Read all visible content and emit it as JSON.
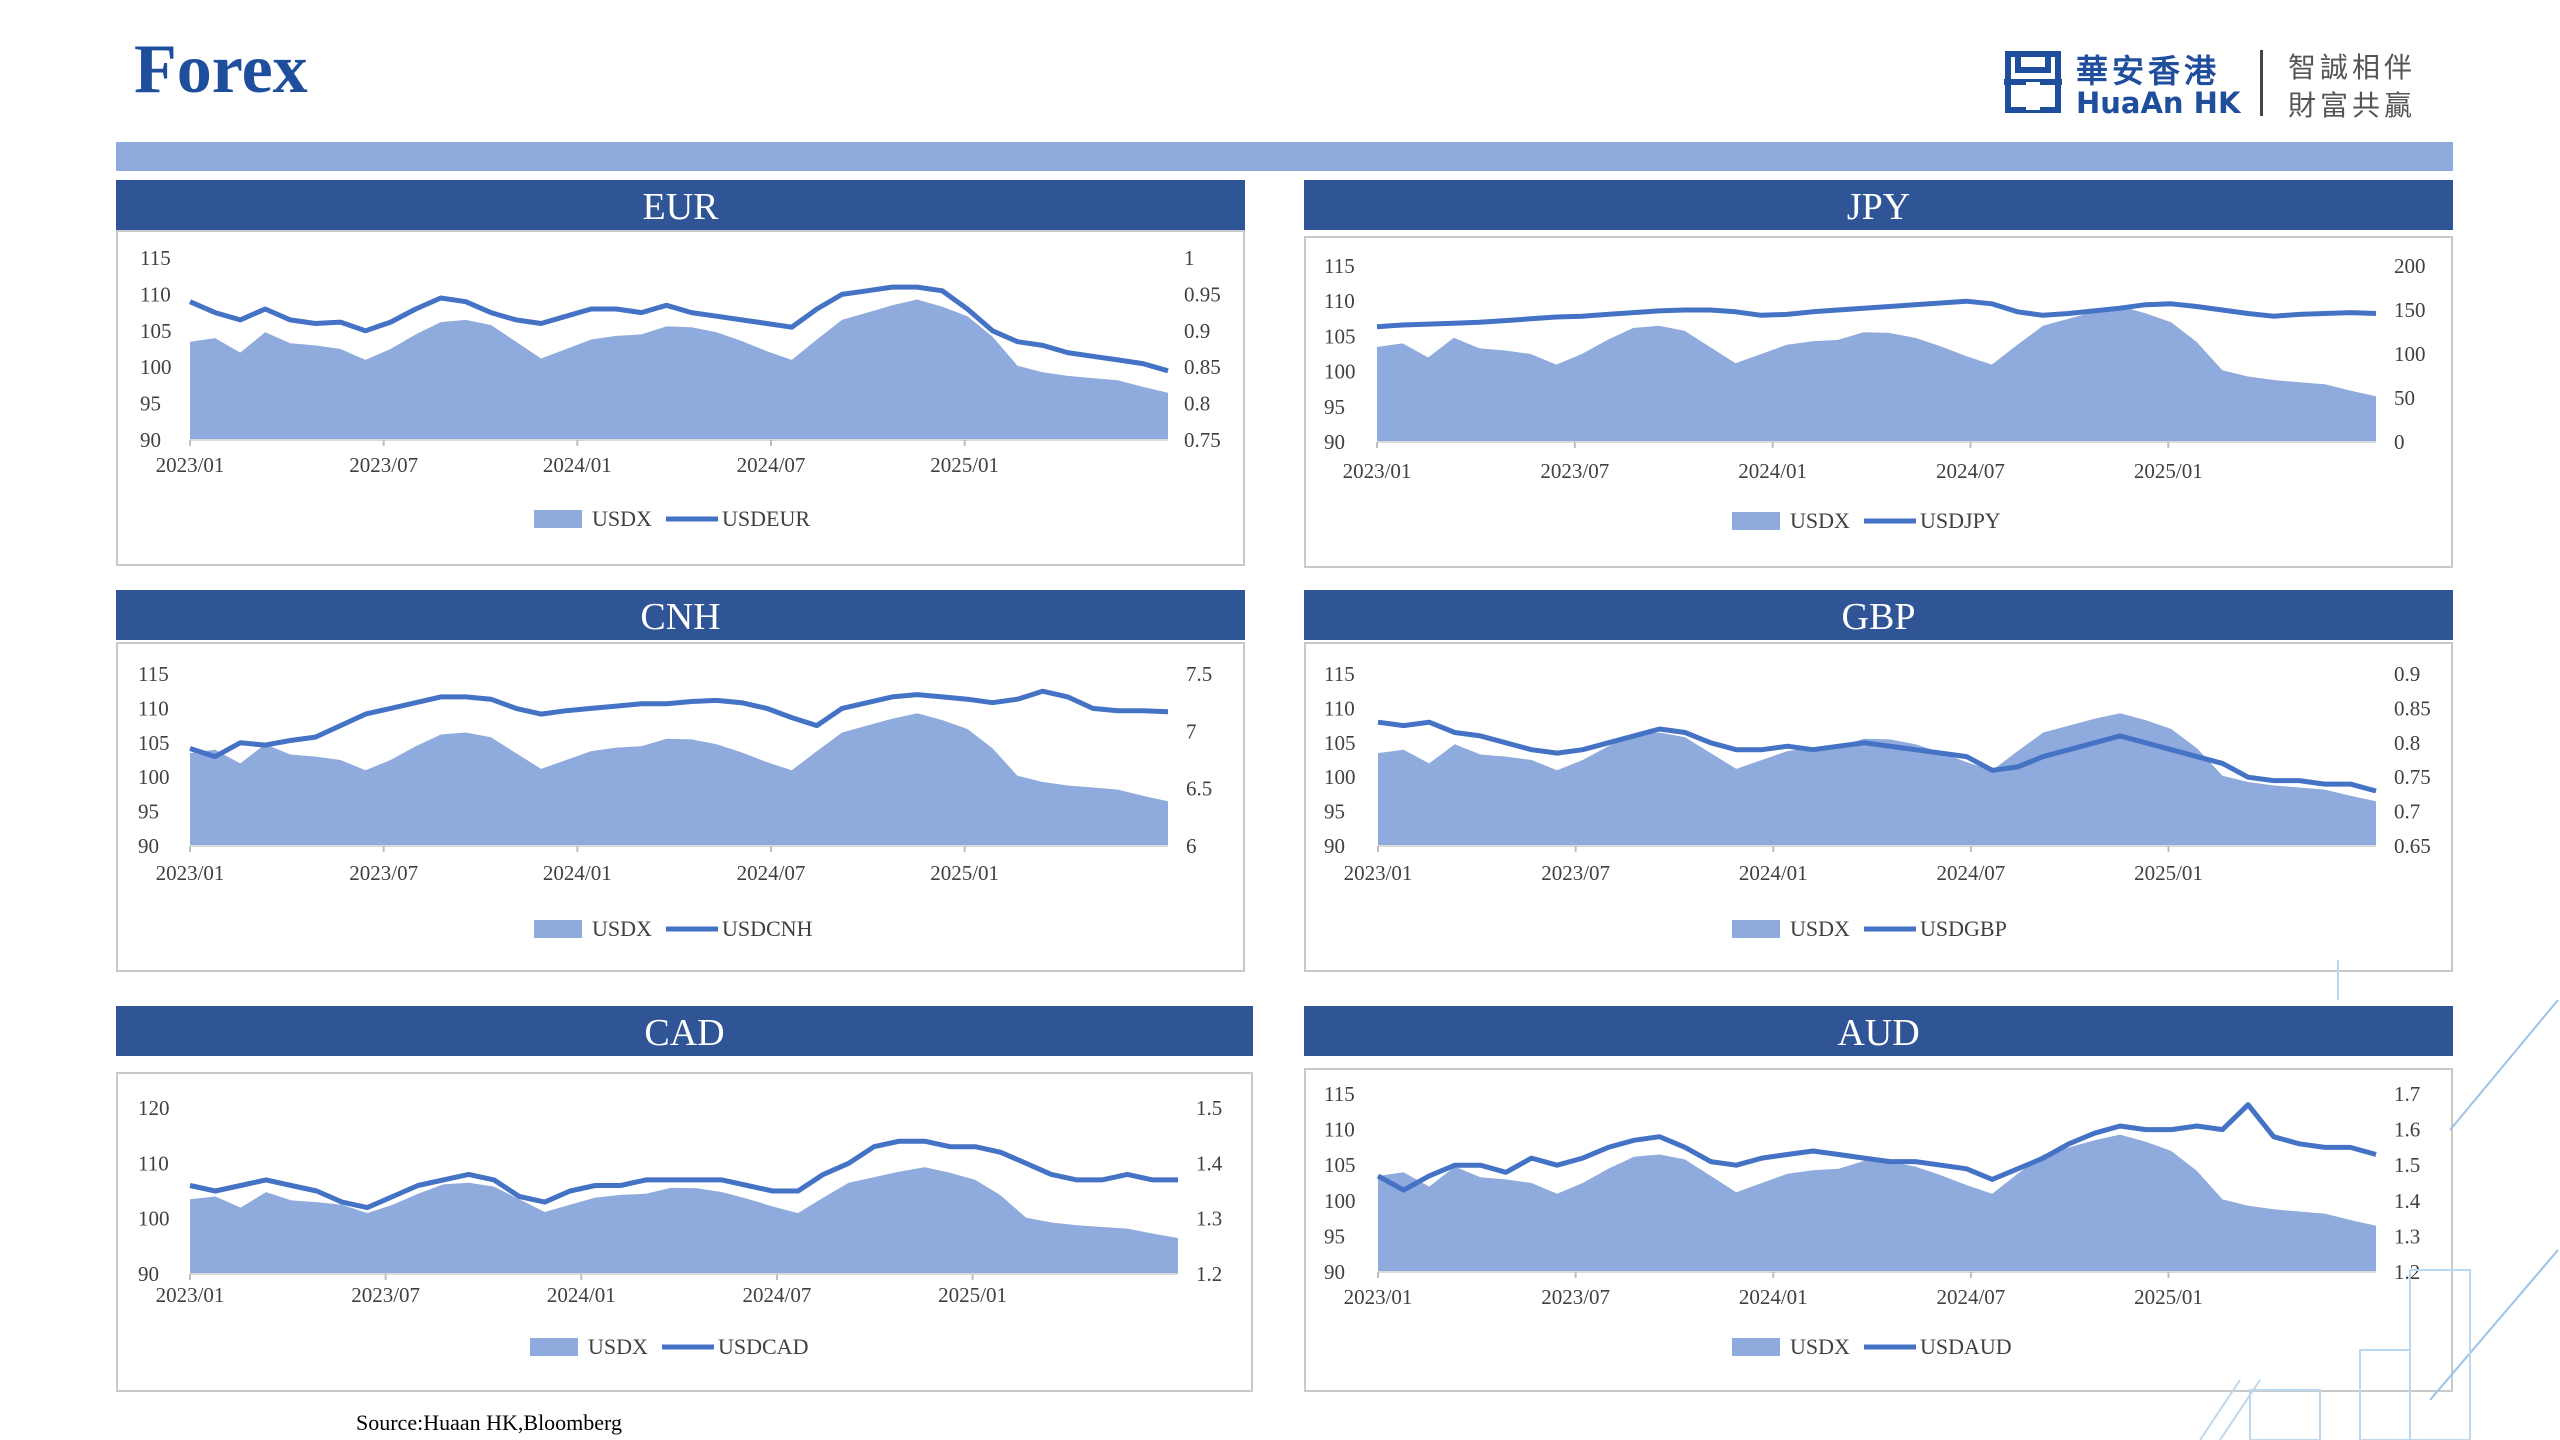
{
  "page": {
    "title": "Forex",
    "source": "Source:Huaan HK,Bloomberg"
  },
  "logo": {
    "cn_name": "華安香港",
    "en_name": "HuaAn HK",
    "slogan_line1": "智誠相伴",
    "slogan_line2": "財富共贏"
  },
  "colors": {
    "brand": "#1f4e9c",
    "header_bg": "#2f5597",
    "band": "#8faadc",
    "area": "#8faadc",
    "line": "#4472c4"
  },
  "chart_data": [
    {
      "id": "eur",
      "title": "EUR",
      "type": "area+line",
      "x_ticks": [
        "2023/01",
        "2023/07",
        "2024/01",
        "2024/07",
        "2025/01"
      ],
      "left_axis": {
        "ticks": [
          "115",
          "110",
          "105",
          "100",
          "95",
          "90"
        ],
        "range": [
          90,
          115
        ]
      },
      "right_axis": {
        "ticks": [
          "1",
          "0.95",
          "0.9",
          "0.85",
          "0.8",
          "0.75"
        ],
        "range": [
          0.75,
          1
        ]
      },
      "series": [
        {
          "name": "USDX",
          "kind": "area",
          "axis": "left",
          "values": [
            103.5,
            104.0,
            102.0,
            104.8,
            103.3,
            103.0,
            102.5,
            101.0,
            102.5,
            104.5,
            106.2,
            106.5,
            105.8,
            103.5,
            101.2,
            102.5,
            103.8,
            104.3,
            104.5,
            105.6,
            105.5,
            104.8,
            103.6,
            102.2,
            101.0,
            103.8,
            106.5,
            107.5,
            108.5,
            109.3,
            108.3,
            107.0,
            104.2,
            100.2,
            99.3,
            98.8,
            98.5,
            98.2,
            97.3,
            96.5
          ]
        },
        {
          "name": "USDEUR",
          "kind": "line",
          "axis": "right",
          "values": [
            0.94,
            0.925,
            0.915,
            0.93,
            0.915,
            0.91,
            0.912,
            0.9,
            0.912,
            0.93,
            0.945,
            0.94,
            0.925,
            0.915,
            0.91,
            0.92,
            0.93,
            0.93,
            0.925,
            0.935,
            0.925,
            0.92,
            0.915,
            0.91,
            0.905,
            0.93,
            0.95,
            0.955,
            0.96,
            0.96,
            0.955,
            0.93,
            0.9,
            0.885,
            0.88,
            0.87,
            0.865,
            0.86,
            0.855,
            0.845
          ]
        }
      ],
      "legend": [
        "USDX",
        "USDEUR"
      ],
      "legend_position": "bottom"
    },
    {
      "id": "jpy",
      "title": "JPY",
      "type": "area+line",
      "x_ticks": [
        "2023/01",
        "2023/07",
        "2024/01",
        "2024/07",
        "2025/01"
      ],
      "left_axis": {
        "ticks": [
          "115",
          "110",
          "105",
          "100",
          "95",
          "90"
        ],
        "range": [
          90,
          115
        ]
      },
      "right_axis": {
        "ticks": [
          "200",
          "150",
          "100",
          "50",
          "0"
        ],
        "range": [
          0,
          200
        ]
      },
      "series": [
        {
          "name": "USDX",
          "kind": "area",
          "axis": "left",
          "values": [
            103.5,
            104.0,
            102.0,
            104.8,
            103.3,
            103.0,
            102.5,
            101.0,
            102.5,
            104.5,
            106.2,
            106.5,
            105.8,
            103.5,
            101.2,
            102.5,
            103.8,
            104.3,
            104.5,
            105.6,
            105.5,
            104.8,
            103.6,
            102.2,
            101.0,
            103.8,
            106.5,
            107.5,
            108.5,
            109.3,
            108.3,
            107.0,
            104.2,
            100.2,
            99.3,
            98.8,
            98.5,
            98.2,
            97.3,
            96.5
          ]
        },
        {
          "name": "USDJPY",
          "kind": "line",
          "axis": "right",
          "values": [
            131,
            133,
            134,
            135,
            136,
            138,
            140,
            142,
            143,
            145,
            147,
            149,
            150,
            150,
            148,
            144,
            145,
            148,
            150,
            152,
            154,
            156,
            158,
            160,
            157,
            148,
            144,
            146,
            149,
            152,
            156,
            157,
            154,
            150,
            146,
            143,
            145,
            146,
            147,
            146
          ]
        }
      ],
      "legend": [
        "USDX",
        "USDJPY"
      ],
      "legend_position": "bottom"
    },
    {
      "id": "cnh",
      "title": "CNH",
      "type": "area+line",
      "x_ticks": [
        "2023/01",
        "2023/07",
        "2024/01",
        "2024/07",
        "2025/01"
      ],
      "left_axis": {
        "ticks": [
          "115",
          "110",
          "105",
          "100",
          "95",
          "90"
        ],
        "range": [
          90,
          115
        ]
      },
      "right_axis": {
        "ticks": [
          "7.5",
          "7",
          "6.5",
          "6"
        ],
        "range": [
          6,
          7.5
        ]
      },
      "series": [
        {
          "name": "USDX",
          "kind": "area",
          "axis": "left",
          "values": [
            103.5,
            104.0,
            102.0,
            104.8,
            103.3,
            103.0,
            102.5,
            101.0,
            102.5,
            104.5,
            106.2,
            106.5,
            105.8,
            103.5,
            101.2,
            102.5,
            103.8,
            104.3,
            104.5,
            105.6,
            105.5,
            104.8,
            103.6,
            102.2,
            101.0,
            103.8,
            106.5,
            107.5,
            108.5,
            109.3,
            108.3,
            107.0,
            104.2,
            100.2,
            99.3,
            98.8,
            98.5,
            98.2,
            97.3,
            96.5
          ]
        },
        {
          "name": "USDCNH",
          "kind": "line",
          "axis": "right",
          "values": [
            6.85,
            6.78,
            6.9,
            6.88,
            6.92,
            6.95,
            7.05,
            7.15,
            7.2,
            7.25,
            7.3,
            7.3,
            7.28,
            7.2,
            7.15,
            7.18,
            7.2,
            7.22,
            7.24,
            7.24,
            7.26,
            7.27,
            7.25,
            7.2,
            7.12,
            7.05,
            7.2,
            7.25,
            7.3,
            7.32,
            7.3,
            7.28,
            7.25,
            7.28,
            7.35,
            7.3,
            7.2,
            7.18,
            7.18,
            7.17
          ]
        }
      ],
      "legend": [
        "USDX",
        "USDCNH"
      ],
      "legend_position": "bottom"
    },
    {
      "id": "gbp",
      "title": "GBP",
      "type": "area+line",
      "x_ticks": [
        "2023/01",
        "2023/07",
        "2024/01",
        "2024/07",
        "2025/01"
      ],
      "left_axis": {
        "ticks": [
          "115",
          "110",
          "105",
          "100",
          "95",
          "90"
        ],
        "range": [
          90,
          115
        ]
      },
      "right_axis": {
        "ticks": [
          "0.9",
          "0.85",
          "0.8",
          "0.75",
          "0.7",
          "0.65"
        ],
        "range": [
          0.65,
          0.9
        ]
      },
      "series": [
        {
          "name": "USDX",
          "kind": "area",
          "axis": "left",
          "values": [
            103.5,
            104.0,
            102.0,
            104.8,
            103.3,
            103.0,
            102.5,
            101.0,
            102.5,
            104.5,
            106.2,
            106.5,
            105.8,
            103.5,
            101.2,
            102.5,
            103.8,
            104.3,
            104.5,
            105.6,
            105.5,
            104.8,
            103.6,
            102.2,
            101.0,
            103.8,
            106.5,
            107.5,
            108.5,
            109.3,
            108.3,
            107.0,
            104.2,
            100.2,
            99.3,
            98.8,
            98.5,
            98.2,
            97.3,
            96.5
          ]
        },
        {
          "name": "USDGBP",
          "kind": "line",
          "axis": "right",
          "values": [
            0.83,
            0.825,
            0.83,
            0.815,
            0.81,
            0.8,
            0.79,
            0.785,
            0.79,
            0.8,
            0.81,
            0.82,
            0.815,
            0.8,
            0.79,
            0.79,
            0.795,
            0.79,
            0.795,
            0.8,
            0.795,
            0.79,
            0.785,
            0.78,
            0.76,
            0.765,
            0.78,
            0.79,
            0.8,
            0.81,
            0.8,
            0.79,
            0.78,
            0.77,
            0.75,
            0.745,
            0.745,
            0.74,
            0.74,
            0.73
          ]
        }
      ],
      "legend": [
        "USDX",
        "USDGBP"
      ],
      "legend_position": "bottom"
    },
    {
      "id": "cad",
      "title": "CAD",
      "type": "area+line",
      "x_ticks": [
        "2023/01",
        "2023/07",
        "2024/01",
        "2024/07",
        "2025/01"
      ],
      "left_axis": {
        "ticks": [
          "120",
          "110",
          "100",
          "90"
        ],
        "range": [
          90,
          120
        ]
      },
      "right_axis": {
        "ticks": [
          "1.5",
          "1.4",
          "1.3",
          "1.2"
        ],
        "range": [
          1.2,
          1.5
        ]
      },
      "series": [
        {
          "name": "USDX",
          "kind": "area",
          "axis": "left",
          "values": [
            103.5,
            104.0,
            102.0,
            104.8,
            103.3,
            103.0,
            102.5,
            101.0,
            102.5,
            104.5,
            106.2,
            106.5,
            105.8,
            103.5,
            101.2,
            102.5,
            103.8,
            104.3,
            104.5,
            105.6,
            105.5,
            104.8,
            103.6,
            102.2,
            101.0,
            103.8,
            106.5,
            107.5,
            108.5,
            109.3,
            108.3,
            107.0,
            104.2,
            100.2,
            99.3,
            98.8,
            98.5,
            98.2,
            97.3,
            96.5
          ]
        },
        {
          "name": "USDCAD",
          "kind": "line",
          "axis": "right",
          "values": [
            1.36,
            1.35,
            1.36,
            1.37,
            1.36,
            1.35,
            1.33,
            1.32,
            1.34,
            1.36,
            1.37,
            1.38,
            1.37,
            1.34,
            1.33,
            1.35,
            1.36,
            1.36,
            1.37,
            1.37,
            1.37,
            1.37,
            1.36,
            1.35,
            1.35,
            1.38,
            1.4,
            1.43,
            1.44,
            1.44,
            1.43,
            1.43,
            1.42,
            1.4,
            1.38,
            1.37,
            1.37,
            1.38,
            1.37,
            1.37
          ]
        }
      ],
      "legend": [
        "USDX",
        "USDCAD"
      ],
      "legend_position": "bottom"
    },
    {
      "id": "aud",
      "title": "AUD",
      "type": "area+line",
      "x_ticks": [
        "2023/01",
        "2023/07",
        "2024/01",
        "2024/07",
        "2025/01"
      ],
      "left_axis": {
        "ticks": [
          "115",
          "110",
          "105",
          "100",
          "95",
          "90"
        ],
        "range": [
          90,
          115
        ]
      },
      "right_axis": {
        "ticks": [
          "1.7",
          "1.6",
          "1.5",
          "1.4",
          "1.3",
          "1.2"
        ],
        "range": [
          1.2,
          1.7
        ]
      },
      "series": [
        {
          "name": "USDX",
          "kind": "area",
          "axis": "left",
          "values": [
            103.5,
            104.0,
            102.0,
            104.8,
            103.3,
            103.0,
            102.5,
            101.0,
            102.5,
            104.5,
            106.2,
            106.5,
            105.8,
            103.5,
            101.2,
            102.5,
            103.8,
            104.3,
            104.5,
            105.6,
            105.5,
            104.8,
            103.6,
            102.2,
            101.0,
            103.8,
            106.5,
            107.5,
            108.5,
            109.3,
            108.3,
            107.0,
            104.2,
            100.2,
            99.3,
            98.8,
            98.5,
            98.2,
            97.3,
            96.5
          ]
        },
        {
          "name": "USDAUD",
          "kind": "line",
          "axis": "right",
          "values": [
            1.47,
            1.43,
            1.47,
            1.5,
            1.5,
            1.48,
            1.52,
            1.5,
            1.52,
            1.55,
            1.57,
            1.58,
            1.55,
            1.51,
            1.5,
            1.52,
            1.53,
            1.54,
            1.53,
            1.52,
            1.51,
            1.51,
            1.5,
            1.49,
            1.46,
            1.49,
            1.52,
            1.56,
            1.59,
            1.61,
            1.6,
            1.6,
            1.61,
            1.6,
            1.67,
            1.58,
            1.56,
            1.55,
            1.55,
            1.53
          ]
        }
      ],
      "legend": [
        "USDX",
        "USDAUD"
      ],
      "legend_position": "bottom"
    }
  ]
}
